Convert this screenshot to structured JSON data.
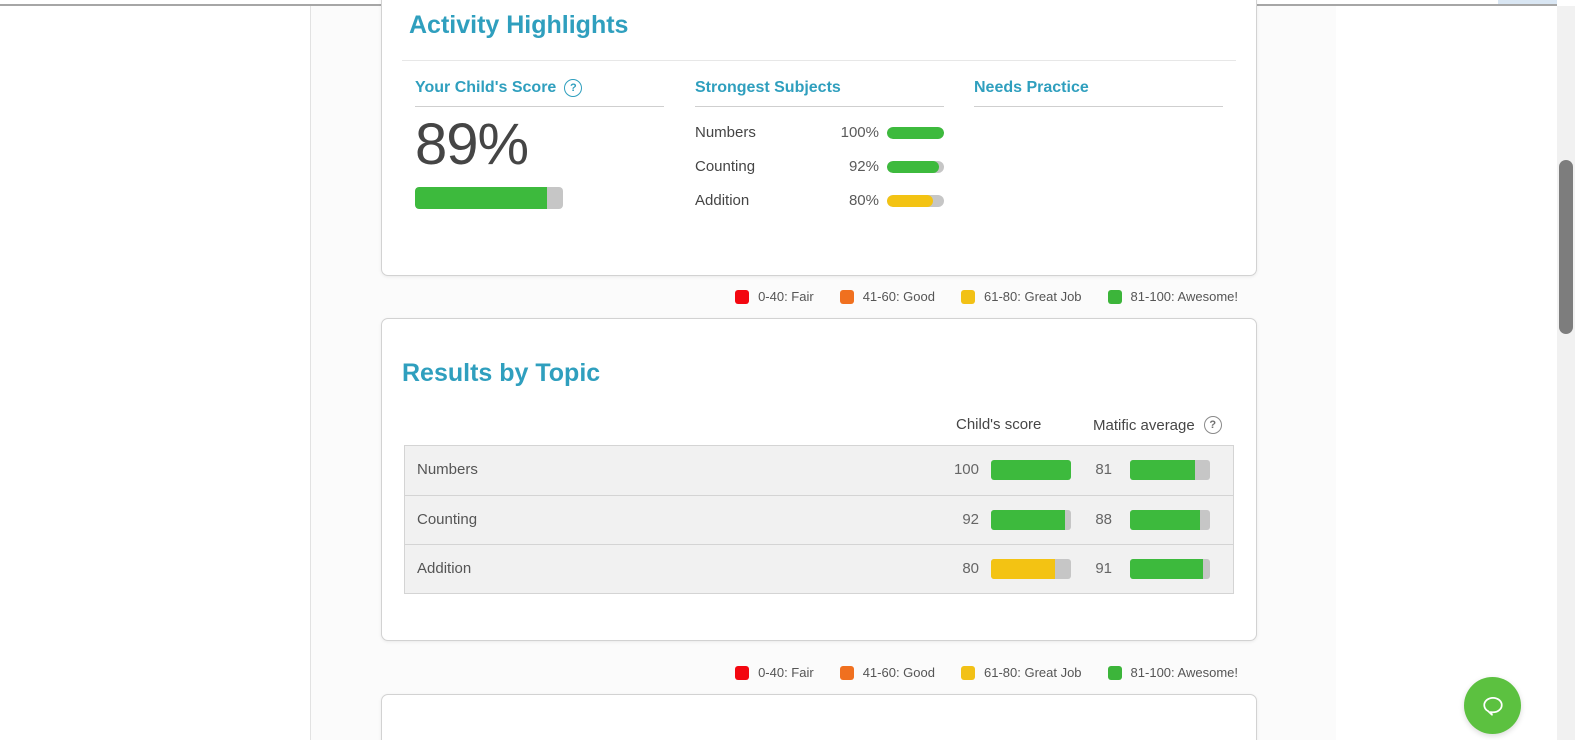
{
  "cards": {
    "activity_highlights": {
      "title": "Activity Highlights",
      "your_childs_score": {
        "heading": "Your Child's Score",
        "help": "?",
        "score_text": "89%",
        "score_percent": 89,
        "bar_color": "#3dba3d"
      },
      "strongest_subjects": {
        "heading": "Strongest Subjects",
        "items": [
          {
            "name": "Numbers",
            "value": "100%",
            "percent": 100,
            "color": "#3dba3d"
          },
          {
            "name": "Counting",
            "value": "92%",
            "percent": 92,
            "color": "#3dba3d"
          },
          {
            "name": "Addition",
            "value": "80%",
            "percent": 80,
            "color": "#f3c313"
          }
        ]
      },
      "needs_practice": {
        "heading": "Needs Practice",
        "items": []
      }
    },
    "results_by_topic": {
      "title": "Results by Topic",
      "columns": {
        "child": "Child's score",
        "average": "Matific average",
        "help": "?"
      },
      "rows": [
        {
          "topic": "Numbers",
          "child_score": "100",
          "child_percent": 100,
          "child_color": "#3dba3d",
          "average": "81",
          "average_percent": 81,
          "average_color": "#3dba3d"
        },
        {
          "topic": "Counting",
          "child_score": "92",
          "child_percent": 92,
          "child_color": "#3dba3d",
          "average": "88",
          "average_percent": 88,
          "average_color": "#3dba3d"
        },
        {
          "topic": "Addition",
          "child_score": "80",
          "child_percent": 80,
          "child_color": "#f3c313",
          "average": "91",
          "average_percent": 91,
          "average_color": "#3dba3d"
        }
      ]
    }
  },
  "legend": {
    "items": [
      {
        "label": "0-40: Fair",
        "color": "#f30710"
      },
      {
        "label": "41-60: Good",
        "color": "#f0701f"
      },
      {
        "label": "61-80: Great Job",
        "color": "#f2c116"
      },
      {
        "label": "81-100: Awesome!",
        "color": "#3cb53a"
      }
    ]
  },
  "theme": {
    "accent_teal": "#2f9fbe",
    "bar_track": "#c6c6c6",
    "chat_green": "#5cc140"
  }
}
